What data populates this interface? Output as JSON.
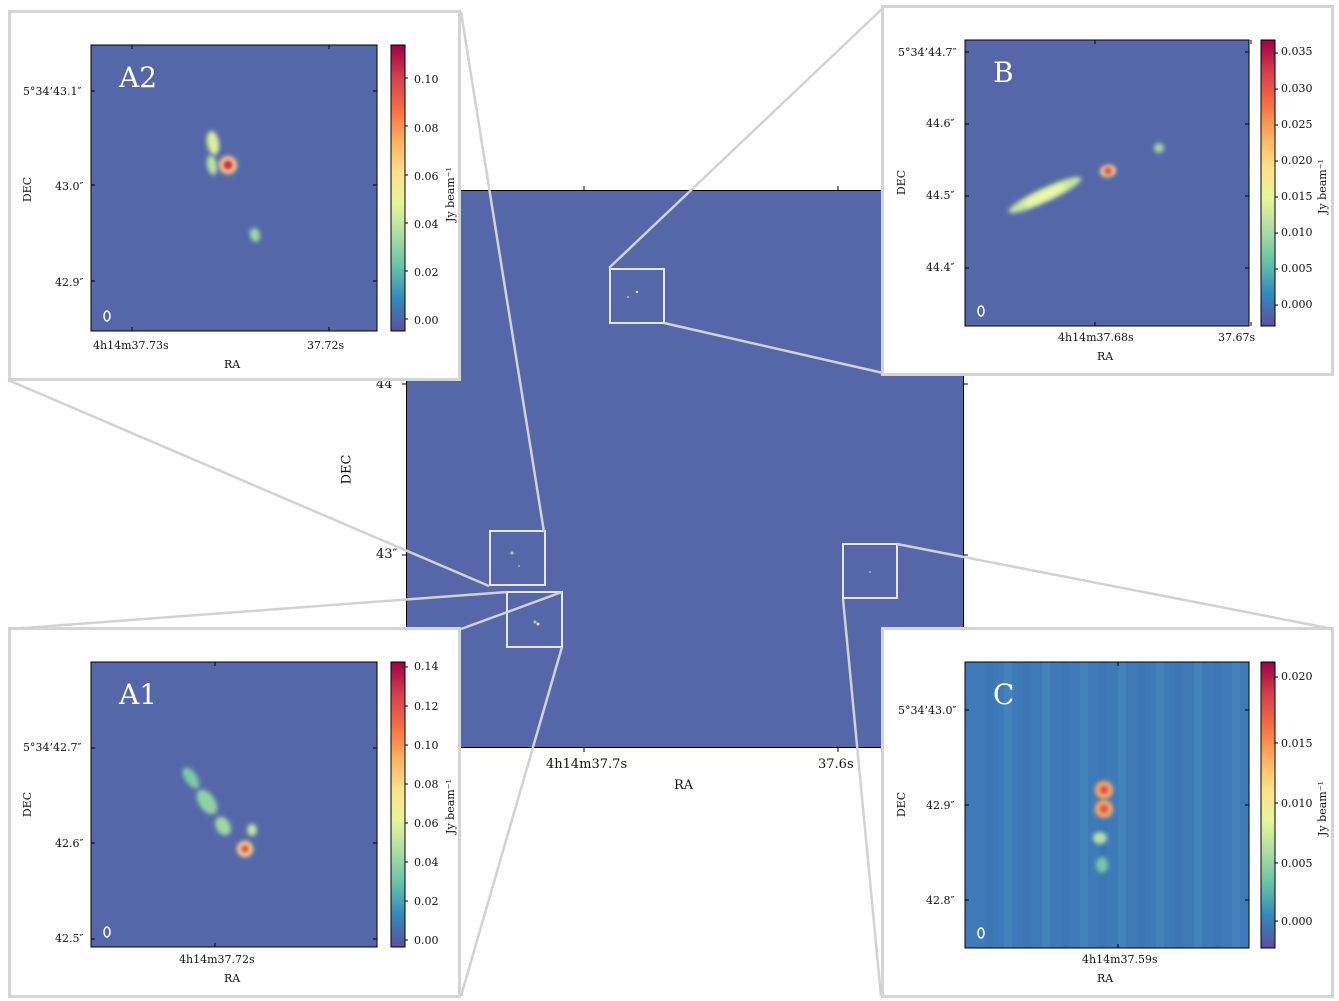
{
  "main": {
    "xlabel": "RA",
    "ylabel": "DEC",
    "xticks": [
      "4h14m37.7s",
      "37.6s"
    ],
    "yticks": [
      "44″",
      "43″"
    ],
    "background_color": "#5567a9"
  },
  "insets": [
    {
      "id": "A2",
      "label": "A2",
      "xlabel": "RA",
      "ylabel": "DEC",
      "xticks": [
        "4h14m37.73s",
        "37.72s"
      ],
      "yticks": [
        "5°34’43.1″",
        "43.0″",
        "42.9″"
      ],
      "colorbar_label": "Jy beam⁻¹",
      "colorbar_ticks": [
        "0.10",
        "0.08",
        "0.06",
        "0.04",
        "0.02",
        "0.00"
      ],
      "colorbar_range": [
        -0.005,
        0.115
      ]
    },
    {
      "id": "B",
      "label": "B",
      "xlabel": "RA",
      "ylabel": "DEC",
      "xticks": [
        "4h14m37.68s",
        "37.67s"
      ],
      "yticks": [
        "5°34’44.7″",
        "44.6″",
        "44.5″",
        "44.4″"
      ],
      "colorbar_label": "Jy beam⁻¹",
      "colorbar_ticks": [
        "0.035",
        "0.030",
        "0.025",
        "0.020",
        "0.015",
        "0.010",
        "0.005",
        "0.000"
      ],
      "colorbar_range": [
        -0.003,
        0.037
      ]
    },
    {
      "id": "A1",
      "label": "A1",
      "xlabel": "RA",
      "ylabel": "DEC",
      "xticks": [
        "4h14m37.72s"
      ],
      "yticks": [
        "5°34’42.7″",
        "42.6″",
        "42.5″"
      ],
      "colorbar_label": "Jy beam⁻¹",
      "colorbar_ticks": [
        "0.14",
        "0.12",
        "0.10",
        "0.08",
        "0.06",
        "0.04",
        "0.02",
        "0.00"
      ],
      "colorbar_range": [
        -0.003,
        0.143
      ]
    },
    {
      "id": "C",
      "label": "C",
      "xlabel": "RA",
      "ylabel": "DEC",
      "xticks": [
        "4h14m37.59s"
      ],
      "yticks": [
        "5°34’43.0″",
        "42.9″",
        "42.8″"
      ],
      "colorbar_label": "Jy beam⁻¹",
      "colorbar_ticks": [
        "0.020",
        "0.015",
        "0.010",
        "0.005",
        "0.000"
      ],
      "colorbar_range": [
        -0.0025,
        0.022
      ]
    }
  ],
  "chart_data": [
    {
      "type": "heatmap",
      "panel": "main",
      "xlabel": "RA",
      "ylabel": "DEC",
      "xticks": [
        "4h14m37.7s",
        "37.6s"
      ],
      "yticks": [
        "44″",
        "43″"
      ],
      "zoom_regions": [
        "A2",
        "B",
        "A1",
        "C"
      ]
    },
    {
      "type": "heatmap",
      "panel": "A2",
      "xlabel": "RA",
      "ylabel": "DEC",
      "colorbar_label": "Jy beam⁻¹",
      "colorbar_ticks": [
        0.1,
        0.08,
        0.06,
        0.04,
        0.02,
        0.0
      ],
      "peak_value": 0.11
    },
    {
      "type": "heatmap",
      "panel": "B",
      "xlabel": "RA",
      "ylabel": "DEC",
      "colorbar_label": "Jy beam⁻¹",
      "colorbar_ticks": [
        0.035,
        0.03,
        0.025,
        0.02,
        0.015,
        0.01,
        0.005,
        0.0
      ],
      "peak_value": 0.036
    },
    {
      "type": "heatmap",
      "panel": "A1",
      "xlabel": "RA",
      "ylabel": "DEC",
      "colorbar_label": "Jy beam⁻¹",
      "colorbar_ticks": [
        0.14,
        0.12,
        0.1,
        0.08,
        0.06,
        0.04,
        0.02,
        0.0
      ],
      "peak_value": 0.14
    },
    {
      "type": "heatmap",
      "panel": "C",
      "xlabel": "RA",
      "ylabel": "DEC",
      "colorbar_label": "Jy beam⁻¹",
      "colorbar_ticks": [
        0.02,
        0.015,
        0.01,
        0.005,
        0.0
      ],
      "peak_value": 0.021
    }
  ]
}
